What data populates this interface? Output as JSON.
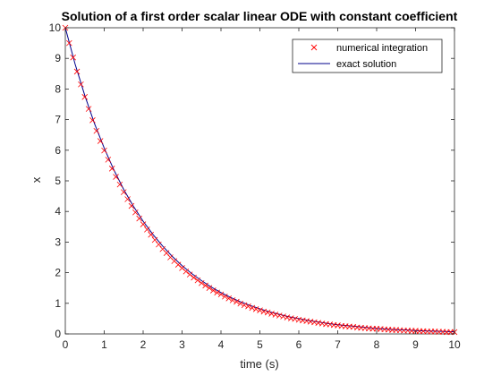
{
  "chart_data": {
    "type": "line",
    "title": "Solution of a first order scalar linear ODE with constant coefficient",
    "xlabel": "time (s)",
    "ylabel": "x",
    "xlim": [
      0,
      10
    ],
    "ylim": [
      0,
      10
    ],
    "xticks": [
      0,
      1,
      2,
      3,
      4,
      5,
      6,
      7,
      8,
      9,
      10
    ],
    "yticks": [
      0,
      1,
      2,
      3,
      4,
      5,
      6,
      7,
      8,
      9,
      10
    ],
    "grid": false,
    "box": true,
    "legend_location": "top-right",
    "series": [
      {
        "name": "numerical integration",
        "style": "markers",
        "marker": "x",
        "color": "#ff0000",
        "x": [
          0,
          0.1,
          0.2,
          0.3,
          0.4,
          0.5,
          0.6,
          0.7,
          0.8,
          0.9,
          1.0,
          1.1,
          1.2,
          1.3,
          1.4,
          1.5,
          1.6,
          1.7,
          1.8,
          1.9,
          2.0,
          2.1,
          2.2,
          2.3,
          2.4,
          2.5,
          2.6,
          2.7,
          2.8,
          2.9,
          3.0,
          3.1,
          3.2,
          3.3,
          3.4,
          3.5,
          3.6,
          3.7,
          3.8,
          3.9,
          4.0,
          4.1,
          4.2,
          4.3,
          4.4,
          4.5,
          4.6,
          4.7,
          4.8,
          4.9,
          5.0,
          5.1,
          5.2,
          5.3,
          5.4,
          5.5,
          5.6,
          5.7,
          5.8,
          5.9,
          6.0,
          6.1,
          6.2,
          6.3,
          6.4,
          6.5,
          6.6,
          6.7,
          6.8,
          6.9,
          7.0,
          7.1,
          7.2,
          7.3,
          7.4,
          7.5,
          7.6,
          7.7,
          7.8,
          7.9,
          8.0,
          8.1,
          8.2,
          8.3,
          8.4,
          8.5,
          8.6,
          8.7,
          8.8,
          8.9,
          9.0,
          9.1,
          9.2,
          9.3,
          9.4,
          9.5,
          9.6,
          9.7,
          9.8,
          9.9,
          10.0
        ],
        "y": [
          10.0,
          9.5,
          9.03,
          8.57,
          8.15,
          7.74,
          7.35,
          6.98,
          6.63,
          6.3,
          5.99,
          5.69,
          5.4,
          5.13,
          4.88,
          4.63,
          4.4,
          4.18,
          3.97,
          3.77,
          3.58,
          3.41,
          3.24,
          3.07,
          2.92,
          2.77,
          2.64,
          2.5,
          2.38,
          2.26,
          2.15,
          2.04,
          1.94,
          1.84,
          1.75,
          1.66,
          1.58,
          1.5,
          1.42,
          1.35,
          1.29,
          1.22,
          1.16,
          1.1,
          1.05,
          0.99,
          0.94,
          0.9,
          0.85,
          0.81,
          0.77,
          0.73,
          0.7,
          0.66,
          0.63,
          0.6,
          0.57,
          0.54,
          0.51,
          0.49,
          0.46,
          0.44,
          0.42,
          0.4,
          0.38,
          0.36,
          0.34,
          0.32,
          0.31,
          0.29,
          0.28,
          0.26,
          0.25,
          0.24,
          0.23,
          0.21,
          0.2,
          0.19,
          0.18,
          0.17,
          0.17,
          0.16,
          0.15,
          0.14,
          0.13,
          0.13,
          0.12,
          0.11,
          0.11,
          0.1,
          0.1,
          0.09,
          0.09,
          0.08,
          0.08,
          0.08,
          0.07,
          0.07,
          0.06,
          0.06,
          0.06
        ]
      },
      {
        "name": "exact solution",
        "style": "line",
        "color": "#00008b",
        "x": [
          0,
          0.25,
          0.5,
          0.75,
          1.0,
          1.25,
          1.5,
          1.75,
          2.0,
          2.25,
          2.5,
          2.75,
          3.0,
          3.25,
          3.5,
          3.75,
          4.0,
          4.25,
          4.5,
          4.75,
          5.0,
          5.25,
          5.5,
          5.75,
          6.0,
          6.25,
          6.5,
          6.75,
          7.0,
          7.25,
          7.5,
          7.75,
          8.0,
          8.25,
          8.5,
          8.75,
          9.0,
          9.25,
          9.5,
          9.75,
          10.0
        ],
        "y": [
          10.0,
          8.82,
          7.79,
          6.87,
          6.07,
          5.35,
          4.72,
          4.17,
          3.68,
          3.25,
          2.87,
          2.53,
          2.23,
          1.97,
          1.74,
          1.53,
          1.35,
          1.19,
          1.05,
          0.93,
          0.82,
          0.72,
          0.64,
          0.56,
          0.5,
          0.44,
          0.39,
          0.34,
          0.3,
          0.27,
          0.24,
          0.21,
          0.18,
          0.16,
          0.14,
          0.13,
          0.11,
          0.1,
          0.09,
          0.08,
          0.07
        ]
      }
    ]
  }
}
